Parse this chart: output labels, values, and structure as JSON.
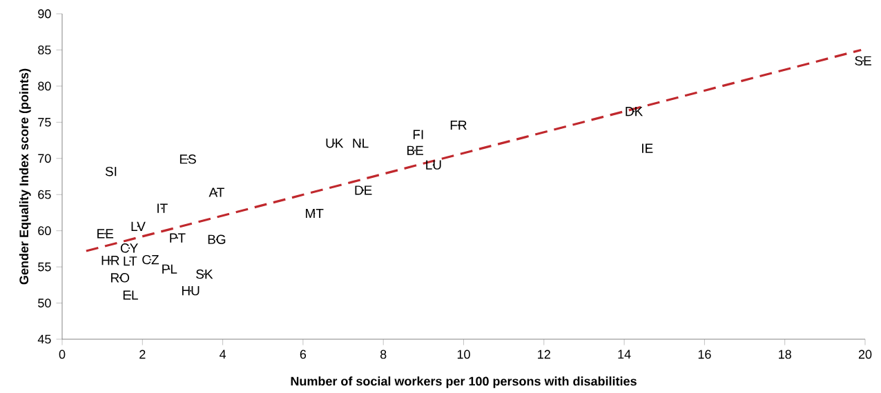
{
  "chart_data": {
    "type": "scatter",
    "xlabel": "Number of social workers per 100 persons with disabilities",
    "ylabel": "Gender Equality Index score (points)",
    "xlim": [
      0,
      20
    ],
    "xticks": [
      0,
      2,
      4,
      6,
      8,
      10,
      12,
      14,
      16,
      18,
      20
    ],
    "ylim": [
      45,
      90
    ],
    "yticks": [
      45,
      50,
      55,
      60,
      65,
      70,
      75,
      80,
      85,
      90
    ],
    "grid": false,
    "series": [
      {
        "color": "#000000",
        "x": [
          19.95,
          14.24,
          14.57,
          9.87,
          8.87,
          8.79,
          9.25,
          6.78,
          7.43,
          7.5,
          6.28,
          3.13,
          1.22,
          3.85,
          2.49,
          1.89,
          1.07,
          2.87,
          3.85,
          1.67,
          1.2,
          1.69,
          2.2,
          2.67,
          3.54,
          1.44,
          3.2,
          1.7
        ],
        "values": [
          83.5,
          76.5,
          71.4,
          74.6,
          73.3,
          71.1,
          69.1,
          72.1,
          72.1,
          65.6,
          62.4,
          69.9,
          68.2,
          65.3,
          63.1,
          60.6,
          59.6,
          59.0,
          58.8,
          57.6,
          55.9,
          55.8,
          56.0,
          54.7,
          54.0,
          53.5,
          51.7,
          51.1
        ],
        "value_labels": [
          "SE",
          "DK",
          "IE",
          "FR",
          "FI",
          "BE",
          "LU",
          "UK",
          "NL",
          "DE",
          "MT",
          "ES",
          "SI",
          "AT",
          "IT",
          "LV",
          "EE",
          "PT",
          "BG",
          "CY",
          "HR",
          "LT",
          "CZ",
          "PL",
          "SK",
          "RO",
          "HU",
          "EL"
        ]
      },
      {
        "type": "line",
        "color": "#c0282d",
        "line_style": "dashed",
        "x": [
          0.6,
          19.9
        ],
        "values": [
          57.2,
          85.0
        ]
      }
    ]
  }
}
